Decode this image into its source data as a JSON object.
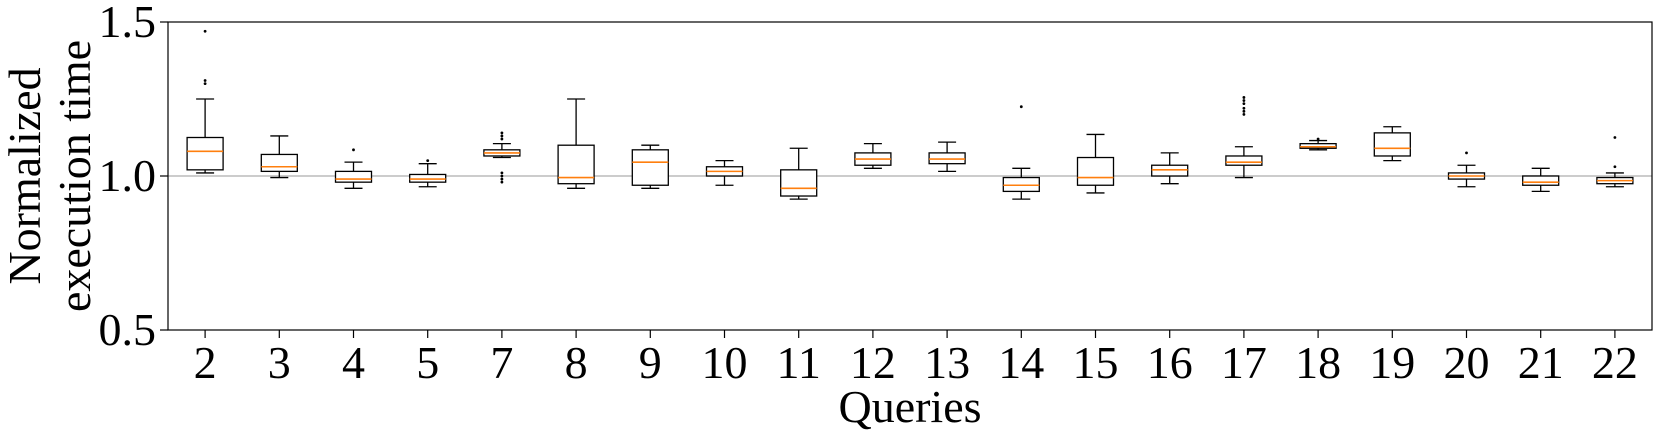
{
  "chart_data": {
    "type": "box",
    "xlabel": "Queries",
    "ylabel_lines": [
      "Normalized",
      "execution time"
    ],
    "ylim": [
      0.5,
      1.5
    ],
    "yticks": [
      "0.5",
      "1.0",
      "1.5"
    ],
    "reference_line": 1.0,
    "colors": {
      "box": "#000000",
      "median": "#ff7f0e",
      "reference": "#bbbbbb"
    },
    "boxes": [
      {
        "query": "2",
        "whislo": 1.01,
        "q1": 1.02,
        "med": 1.08,
        "q3": 1.125,
        "whishi": 1.25,
        "fliers": [
          1.3,
          1.31,
          1.47
        ]
      },
      {
        "query": "3",
        "whislo": 0.995,
        "q1": 1.015,
        "med": 1.03,
        "q3": 1.07,
        "whishi": 1.13,
        "fliers": []
      },
      {
        "query": "4",
        "whislo": 0.96,
        "q1": 0.98,
        "med": 0.99,
        "q3": 1.015,
        "whishi": 1.045,
        "fliers": [
          1.085
        ]
      },
      {
        "query": "5",
        "whislo": 0.965,
        "q1": 0.98,
        "med": 0.99,
        "q3": 1.005,
        "whishi": 1.04,
        "fliers": [
          1.05
        ]
      },
      {
        "query": "7",
        "whislo": 1.06,
        "q1": 1.065,
        "med": 1.075,
        "q3": 1.085,
        "whishi": 1.105,
        "fliers": [
          0.98,
          0.99,
          1.0,
          1.01,
          1.12,
          1.13,
          1.14
        ]
      },
      {
        "query": "8",
        "whislo": 0.96,
        "q1": 0.975,
        "med": 0.995,
        "q3": 1.1,
        "whishi": 1.25,
        "fliers": []
      },
      {
        "query": "9",
        "whislo": 0.96,
        "q1": 0.97,
        "med": 1.045,
        "q3": 1.085,
        "whishi": 1.1,
        "fliers": []
      },
      {
        "query": "10",
        "whislo": 0.97,
        "q1": 1.0,
        "med": 1.015,
        "q3": 1.03,
        "whishi": 1.05,
        "fliers": []
      },
      {
        "query": "11",
        "whislo": 0.925,
        "q1": 0.935,
        "med": 0.96,
        "q3": 1.02,
        "whishi": 1.09,
        "fliers": []
      },
      {
        "query": "12",
        "whislo": 1.025,
        "q1": 1.035,
        "med": 1.055,
        "q3": 1.075,
        "whishi": 1.105,
        "fliers": []
      },
      {
        "query": "13",
        "whislo": 1.015,
        "q1": 1.04,
        "med": 1.055,
        "q3": 1.075,
        "whishi": 1.11,
        "fliers": []
      },
      {
        "query": "14",
        "whislo": 0.925,
        "q1": 0.95,
        "med": 0.97,
        "q3": 0.995,
        "whishi": 1.025,
        "fliers": [
          1.225
        ]
      },
      {
        "query": "15",
        "whislo": 0.945,
        "q1": 0.97,
        "med": 0.995,
        "q3": 1.06,
        "whishi": 1.135,
        "fliers": []
      },
      {
        "query": "16",
        "whislo": 0.975,
        "q1": 1.0,
        "med": 1.02,
        "q3": 1.035,
        "whishi": 1.075,
        "fliers": []
      },
      {
        "query": "17",
        "whislo": 0.995,
        "q1": 1.035,
        "med": 1.045,
        "q3": 1.065,
        "whishi": 1.095,
        "fliers": [
          1.2,
          1.21,
          1.22,
          1.235,
          1.245,
          1.255
        ]
      },
      {
        "query": "18",
        "whislo": 1.085,
        "q1": 1.09,
        "med": 1.095,
        "q3": 1.105,
        "whishi": 1.115,
        "fliers": [
          1.12
        ]
      },
      {
        "query": "19",
        "whislo": 1.05,
        "q1": 1.065,
        "med": 1.09,
        "q3": 1.14,
        "whishi": 1.16,
        "fliers": []
      },
      {
        "query": "20",
        "whislo": 0.965,
        "q1": 0.99,
        "med": 1.0,
        "q3": 1.01,
        "whishi": 1.035,
        "fliers": [
          1.075
        ]
      },
      {
        "query": "21",
        "whislo": 0.95,
        "q1": 0.97,
        "med": 0.98,
        "q3": 1.0,
        "whishi": 1.025,
        "fliers": []
      },
      {
        "query": "22",
        "whislo": 0.965,
        "q1": 0.975,
        "med": 0.985,
        "q3": 0.995,
        "whishi": 1.01,
        "fliers": [
          1.03,
          1.125
        ]
      }
    ]
  }
}
